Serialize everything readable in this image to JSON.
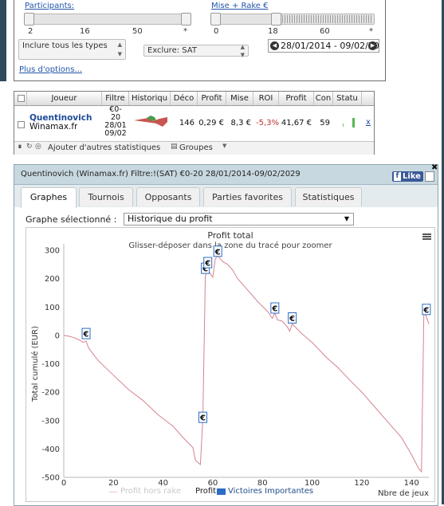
{
  "filters": {
    "participants_label": "Participants:",
    "participants_ticks": [
      "2",
      "16",
      "50",
      "*"
    ],
    "buyin_label": "Mise + Rake €",
    "buyin_ticks": [
      "0",
      "18",
      "60",
      "*"
    ],
    "include_types": "Inclure tous les types",
    "exclude": "Exclure: SAT",
    "date_range": "28/01/2014 - 09/02/2029",
    "more_options": "Plus d'options..."
  },
  "table": {
    "columns": [
      "Joueur",
      "Filtre",
      "Historiqu",
      "Déco",
      "Profit",
      "Mise",
      "ROI",
      "Profit",
      "Con",
      "Statu"
    ],
    "row": {
      "player_name": "Quentinovich",
      "player_site": "Winamax.fr",
      "filter_lines": [
        "€0-",
        "20",
        "28/01",
        "09/02"
      ],
      "deco": "146",
      "profit": "0,29 €",
      "mise": "8,3 €",
      "roi": "-5,3%",
      "profit_total": "41,67 €",
      "con": "59",
      "remove": "x"
    },
    "footer": {
      "add_stats": "Ajouter d'autres statistiques",
      "groups": "Groupes"
    }
  },
  "graph_window": {
    "title": "Quentinovich (Winamax.fr) Filtre:!(SAT) €0-20 28/01/2014-09/02/2029",
    "like": "Like",
    "tabs": [
      "Graphes",
      "Tournois",
      "Opposants",
      "Parties favorites",
      "Statistiques"
    ],
    "active_tab": 0,
    "graph_label": "Graphe sélectionné :",
    "graph_selected": "Historique du profit"
  },
  "colors": {
    "profit_line": "#d4838e",
    "accent_blue": "#2b6cc4",
    "title_bar": "#c8d8e0"
  },
  "chart_data": {
    "type": "line",
    "title": "Profit total",
    "subtitle": "Glisser-déposer dans la zone du tracé pour zoomer",
    "ylabel": "Total cumulé (EUR)",
    "xlabel": "Nbre de jeux",
    "xlim": [
      0,
      147
    ],
    "ylim": [
      -500,
      300
    ],
    "x_ticks": [
      0,
      20,
      40,
      60,
      80,
      100,
      120,
      140
    ],
    "y_ticks": [
      300,
      200,
      100,
      0,
      -100,
      -200,
      -300,
      -400,
      -500
    ],
    "legend": [
      "Profit hors rake",
      "Profit",
      "Victoires Importantes"
    ],
    "series": [
      {
        "name": "Profit",
        "x": [
          0,
          2,
          4,
          6,
          8,
          9,
          10,
          14,
          20,
          26,
          32,
          38,
          44,
          48,
          52,
          53,
          55,
          56,
          57,
          58,
          60,
          61,
          62,
          64,
          66,
          68,
          70,
          74,
          78,
          82,
          84,
          85,
          86,
          88,
          90,
          91,
          92,
          96,
          100,
          106,
          110,
          116,
          120,
          126,
          130,
          136,
          140,
          143,
          144,
          145,
          147
        ],
        "y": [
          0,
          -3,
          -8,
          -15,
          -25,
          -20,
          -45,
          -90,
          -140,
          -190,
          -230,
          -280,
          -320,
          -360,
          -395,
          -440,
          -455,
          -290,
          210,
          230,
          205,
          270,
          280,
          260,
          250,
          230,
          200,
          160,
          120,
          85,
          60,
          80,
          55,
          50,
          30,
          15,
          40,
          5,
          -25,
          -80,
          -110,
          -165,
          -200,
          -260,
          -300,
          -360,
          -420,
          -470,
          -480,
          90,
          40
        ]
      }
    ],
    "markers": [
      {
        "x": 9,
        "y": 5,
        "label": "€"
      },
      {
        "x": 56,
        "y": -290,
        "label": "€"
      },
      {
        "x": 57,
        "y": 235,
        "label": "€"
      },
      {
        "x": 58,
        "y": 255,
        "label": "€"
      },
      {
        "x": 62,
        "y": 295,
        "label": "€"
      },
      {
        "x": 85,
        "y": 95,
        "label": "€"
      },
      {
        "x": 92,
        "y": 60,
        "label": "€"
      },
      {
        "x": 146,
        "y": 90,
        "label": "€"
      }
    ]
  }
}
